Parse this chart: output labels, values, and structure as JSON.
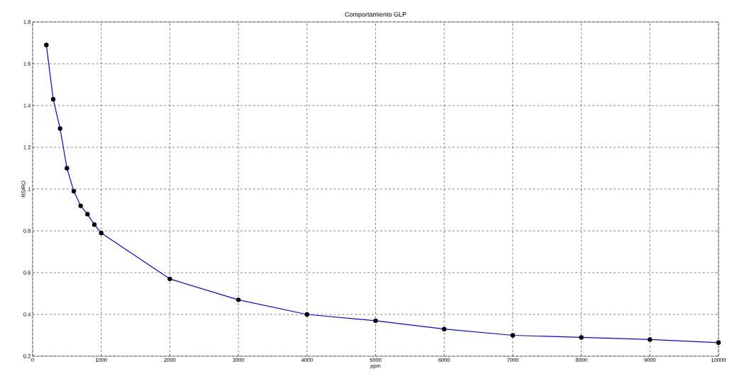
{
  "chart_data": {
    "type": "line",
    "title": "Comportamiento GLP",
    "xlabel": "ppm",
    "ylabel": "RS/RO",
    "x": [
      200,
      300,
      400,
      500,
      600,
      700,
      800,
      900,
      1000,
      2000,
      3000,
      4000,
      5000,
      6000,
      7000,
      8000,
      9000,
      10000
    ],
    "series": [
      {
        "color": "#0000ff",
        "values": [
          1.69,
          1.43,
          1.29,
          1.1,
          0.99,
          0.92,
          0.88,
          0.83,
          0.79,
          0.57,
          0.47,
          0.4,
          0.37,
          0.33,
          0.3,
          0.29,
          0.28,
          0.265
        ]
      }
    ],
    "xlim": [
      0,
      10000
    ],
    "ylim": [
      0.2,
      1.8
    ],
    "xticks": [
      0,
      1000,
      2000,
      3000,
      4000,
      5000,
      6000,
      7000,
      8000,
      9000,
      10000
    ],
    "yticks": [
      0.2,
      0.4,
      0.6,
      0.8,
      1,
      1.2,
      1.4,
      1.6,
      1.8
    ],
    "grid": true,
    "marker": "circle",
    "line_style": "solid"
  }
}
